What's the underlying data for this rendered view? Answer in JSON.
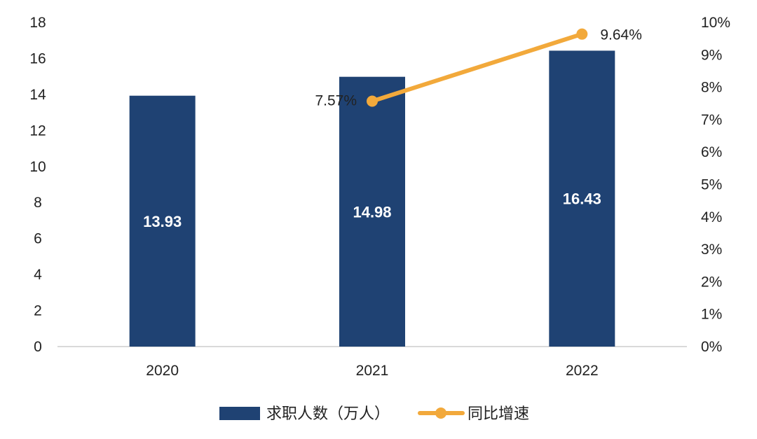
{
  "chart_data": {
    "type": "bar",
    "categories": [
      "2020",
      "2021",
      "2022"
    ],
    "series": [
      {
        "name": "求职人数（万人）",
        "type": "bar",
        "axis": "left",
        "color": "#1f4273",
        "values": [
          13.93,
          14.98,
          16.43
        ],
        "labels": [
          "13.93",
          "14.98",
          "16.43"
        ]
      },
      {
        "name": "同比增速",
        "type": "line",
        "axis": "right",
        "color": "#f2a93b",
        "values": [
          null,
          7.57,
          9.64
        ],
        "labels": [
          null,
          "7.57%",
          "9.64%"
        ]
      }
    ],
    "y_left": {
      "ylim": [
        0,
        18
      ],
      "ticks": [
        0,
        2,
        4,
        6,
        8,
        10,
        12,
        14,
        16,
        18
      ]
    },
    "y_right": {
      "ylim": [
        0,
        10
      ],
      "ticks": [
        0,
        1,
        2,
        3,
        4,
        5,
        6,
        7,
        8,
        9,
        10
      ],
      "tick_labels": [
        "0%",
        "1%",
        "2%",
        "3%",
        "4%",
        "5%",
        "6%",
        "7%",
        "8%",
        "9%",
        "10%"
      ]
    },
    "grid": false,
    "legend": "bottom-center",
    "xlabel": "",
    "ylabel": ""
  }
}
